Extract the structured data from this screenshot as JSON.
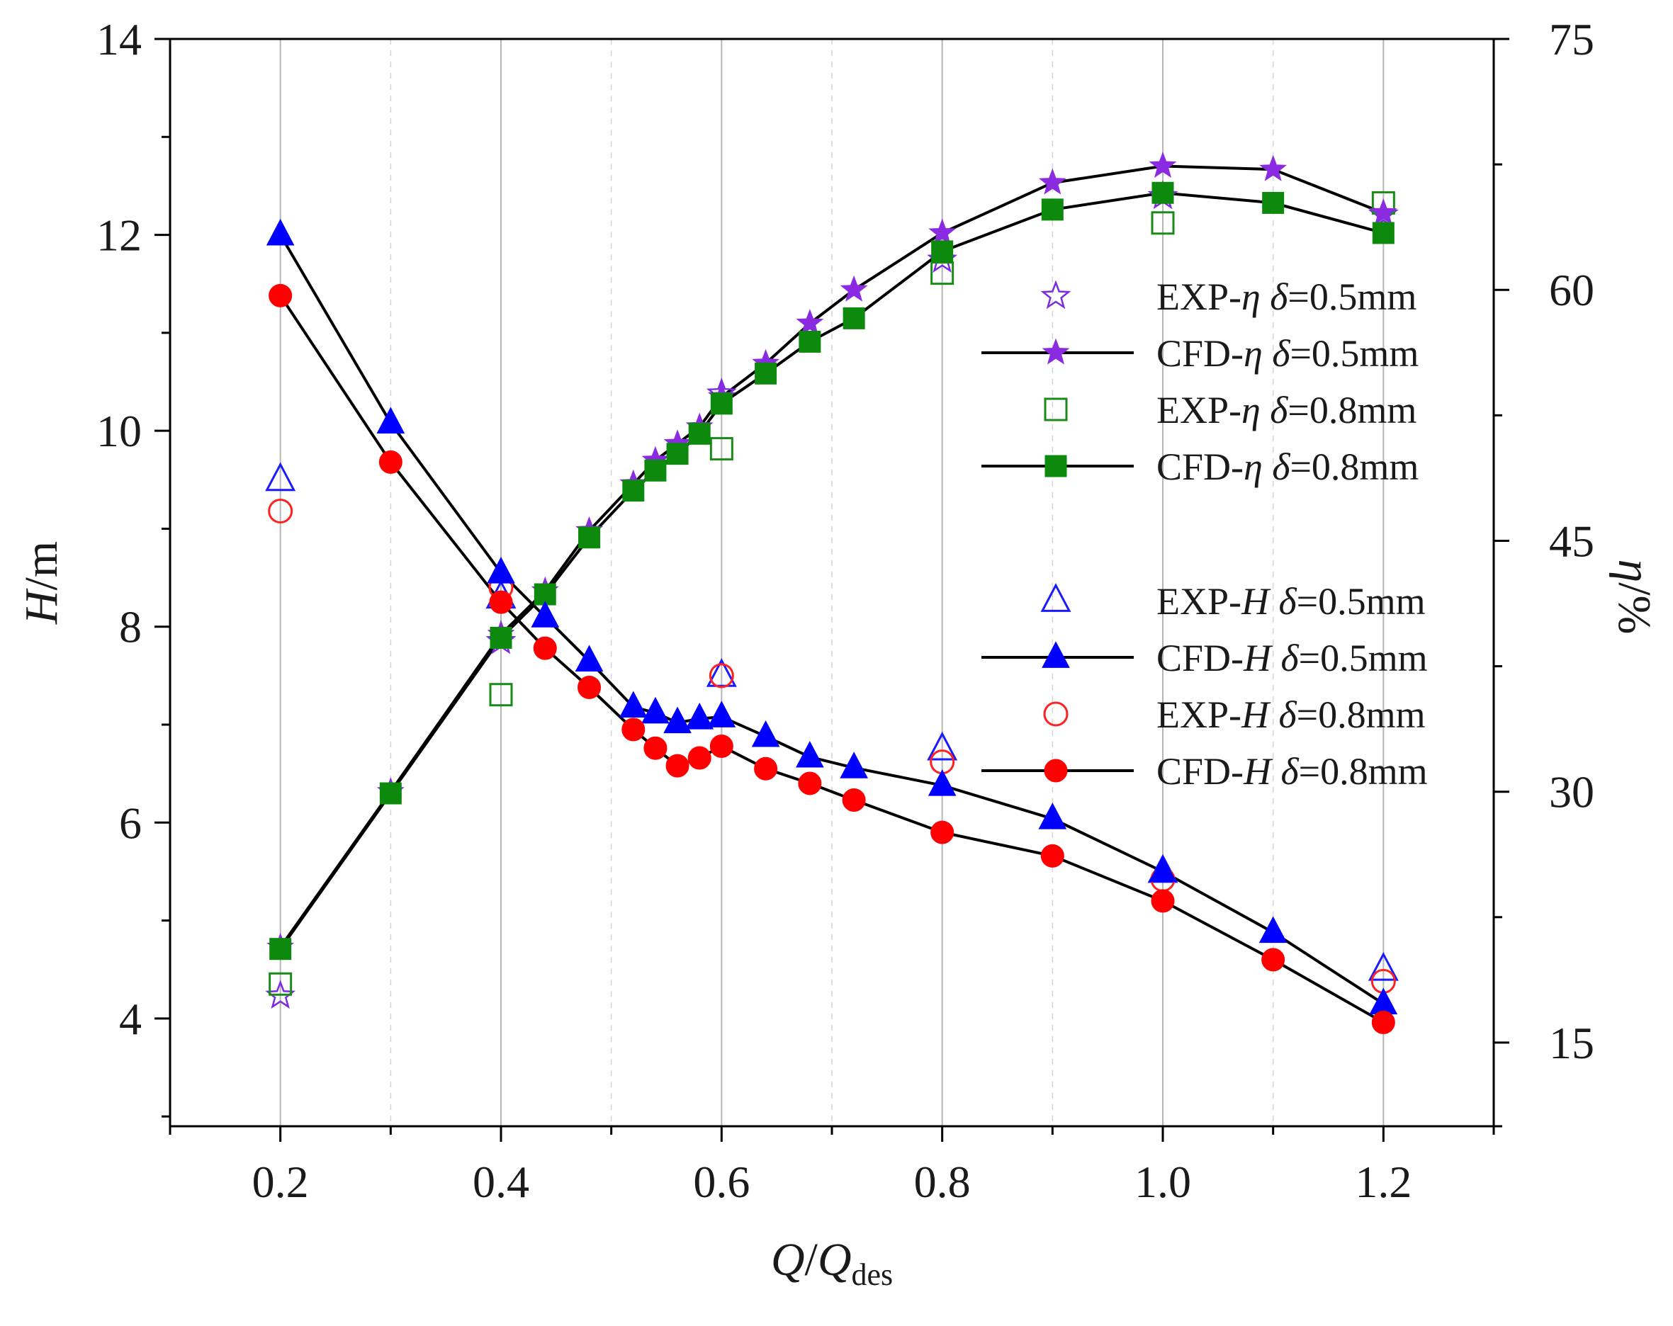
{
  "chart_data": {
    "type": "line",
    "x_axis": {
      "label_prefix": "Q/Q",
      "label_subscript": "des",
      "range": [
        0.1,
        1.3
      ],
      "major_ticks": [
        0.2,
        0.4,
        0.6,
        0.8,
        1.0,
        1.2
      ],
      "tick_labels": [
        "0.2",
        "0.4",
        "0.6",
        "0.8",
        "1.0",
        "1.2"
      ],
      "minor_ticks": [
        0.1,
        0.3,
        0.5,
        0.7,
        0.9,
        1.1,
        1.3
      ],
      "gridlines": [
        0.2,
        0.3,
        0.4,
        0.5,
        0.6,
        0.7,
        0.8,
        0.9,
        1.0,
        1.1,
        1.2
      ]
    },
    "y_left": {
      "label_main": "H",
      "label_unit": "/m",
      "range": [
        2.9,
        14
      ],
      "major_ticks": [
        4,
        6,
        8,
        10,
        12,
        14
      ],
      "tick_labels": [
        "4",
        "6",
        "8",
        "10",
        "12",
        "14"
      ],
      "minor_ticks": [
        3,
        5,
        7,
        9,
        11,
        13
      ]
    },
    "y_right": {
      "label_main": "η",
      "label_unit": "/%",
      "range": [
        10,
        75
      ],
      "major_ticks": [
        15,
        30,
        45,
        60,
        75
      ],
      "tick_labels": [
        "15",
        "30",
        "45",
        "60",
        "75"
      ],
      "minor_ticks": [
        10,
        22.5,
        37.5,
        52.5,
        67.5
      ]
    },
    "series": [
      {
        "name": "EXP-η δ=0.5mm",
        "legend_prefix": "EXP-",
        "legend_symbol": "η",
        "legend_suffix": " δ=0.5mm",
        "axis": "right",
        "marker": "star",
        "filled": false,
        "line": false,
        "color": "#7b2be2",
        "x": [
          0.2,
          0.4,
          0.6,
          0.8,
          1.0,
          1.2
        ],
        "y": [
          17.8,
          39.0,
          53.8,
          61.8,
          65.6,
          64.5
        ]
      },
      {
        "name": "CFD-η δ=0.5mm",
        "legend_prefix": "CFD-",
        "legend_symbol": "η",
        "legend_suffix": " δ=0.5mm",
        "axis": "right",
        "marker": "star",
        "filled": true,
        "line": true,
        "color": "#8a2be2",
        "x": [
          0.2,
          0.3,
          0.4,
          0.44,
          0.48,
          0.52,
          0.54,
          0.56,
          0.58,
          0.6,
          0.64,
          0.68,
          0.72,
          0.8,
          0.9,
          1.0,
          1.1,
          1.2
        ],
        "y": [
          20.7,
          30.0,
          39.4,
          42.0,
          45.6,
          48.4,
          49.8,
          50.8,
          51.8,
          53.6,
          55.6,
          58.0,
          60.0,
          63.4,
          66.4,
          67.4,
          67.2,
          64.6
        ]
      },
      {
        "name": "EXP-η δ=0.8mm",
        "legend_prefix": "EXP-",
        "legend_symbol": "η",
        "legend_suffix": " δ=0.8mm",
        "axis": "right",
        "marker": "square",
        "filled": false,
        "line": false,
        "color": "#1a8a1a",
        "x": [
          0.2,
          0.4,
          0.6,
          0.8,
          1.0,
          1.2
        ],
        "y": [
          18.5,
          35.8,
          50.5,
          61.0,
          64.0,
          65.2
        ]
      },
      {
        "name": "CFD-η δ=0.8mm",
        "legend_prefix": "CFD-",
        "legend_symbol": "η",
        "legend_suffix": " δ=0.8mm",
        "axis": "right",
        "marker": "square",
        "filled": true,
        "line": true,
        "color": "#0d8a0d",
        "x": [
          0.2,
          0.3,
          0.4,
          0.44,
          0.48,
          0.52,
          0.54,
          0.56,
          0.58,
          0.6,
          0.64,
          0.68,
          0.72,
          0.8,
          0.9,
          1.0,
          1.1,
          1.2
        ],
        "y": [
          20.6,
          29.9,
          39.2,
          41.8,
          45.2,
          48.0,
          49.2,
          50.2,
          51.4,
          53.2,
          55.0,
          56.9,
          58.3,
          62.3,
          64.8,
          65.8,
          65.2,
          63.4
        ]
      },
      {
        "name": "EXP-H δ=0.5mm",
        "legend_prefix": "EXP-",
        "legend_symbol": "H",
        "legend_suffix": " δ=0.5mm",
        "axis": "left",
        "marker": "triangle",
        "filled": false,
        "line": false,
        "color": "#1a1aff",
        "x": [
          0.2,
          0.4,
          0.6,
          0.8,
          1.0,
          1.2
        ],
        "y": [
          9.5,
          8.3,
          7.5,
          6.75,
          5.5,
          4.5
        ]
      },
      {
        "name": "CFD-H δ=0.5mm",
        "legend_prefix": "CFD-",
        "legend_symbol": "H",
        "legend_suffix": " δ=0.5mm",
        "axis": "left",
        "marker": "triangle",
        "filled": true,
        "line": true,
        "color": "#0000ff",
        "x": [
          0.2,
          0.3,
          0.4,
          0.44,
          0.48,
          0.52,
          0.54,
          0.56,
          0.58,
          0.6,
          0.64,
          0.68,
          0.72,
          0.8,
          0.9,
          1.0,
          1.1,
          1.2
        ],
        "y": [
          12.0,
          10.08,
          8.55,
          8.1,
          7.65,
          7.18,
          7.12,
          7.02,
          7.06,
          7.08,
          6.88,
          6.67,
          6.56,
          6.38,
          6.04,
          5.5,
          4.88,
          4.15
        ]
      },
      {
        "name": "EXP-H δ=0.8mm",
        "legend_prefix": "EXP-",
        "legend_symbol": "H",
        "legend_suffix": " δ=0.8mm",
        "axis": "left",
        "marker": "circle",
        "filled": false,
        "line": false,
        "color": "#ff2020",
        "x": [
          0.2,
          0.4,
          0.6,
          0.8,
          1.0,
          1.2
        ],
        "y": [
          9.18,
          8.4,
          7.5,
          6.62,
          5.42,
          4.38
        ]
      },
      {
        "name": "CFD-H δ=0.8mm",
        "legend_prefix": "CFD-",
        "legend_symbol": "H",
        "legend_suffix": " δ=0.8mm",
        "axis": "left",
        "marker": "circle",
        "filled": true,
        "line": true,
        "color": "#ff0000",
        "x": [
          0.2,
          0.3,
          0.4,
          0.44,
          0.48,
          0.52,
          0.54,
          0.56,
          0.58,
          0.6,
          0.64,
          0.68,
          0.72,
          0.8,
          0.9,
          1.0,
          1.1,
          1.2
        ],
        "y": [
          11.38,
          9.68,
          8.25,
          7.78,
          7.38,
          6.95,
          6.76,
          6.58,
          6.66,
          6.78,
          6.55,
          6.4,
          6.23,
          5.9,
          5.66,
          5.2,
          4.6,
          3.96
        ]
      }
    ],
    "legend_groups": [
      [
        0,
        1,
        2,
        3
      ],
      [
        4,
        5,
        6,
        7
      ]
    ],
    "legend_placement": "right side, two groups (η upper, H lower)"
  }
}
